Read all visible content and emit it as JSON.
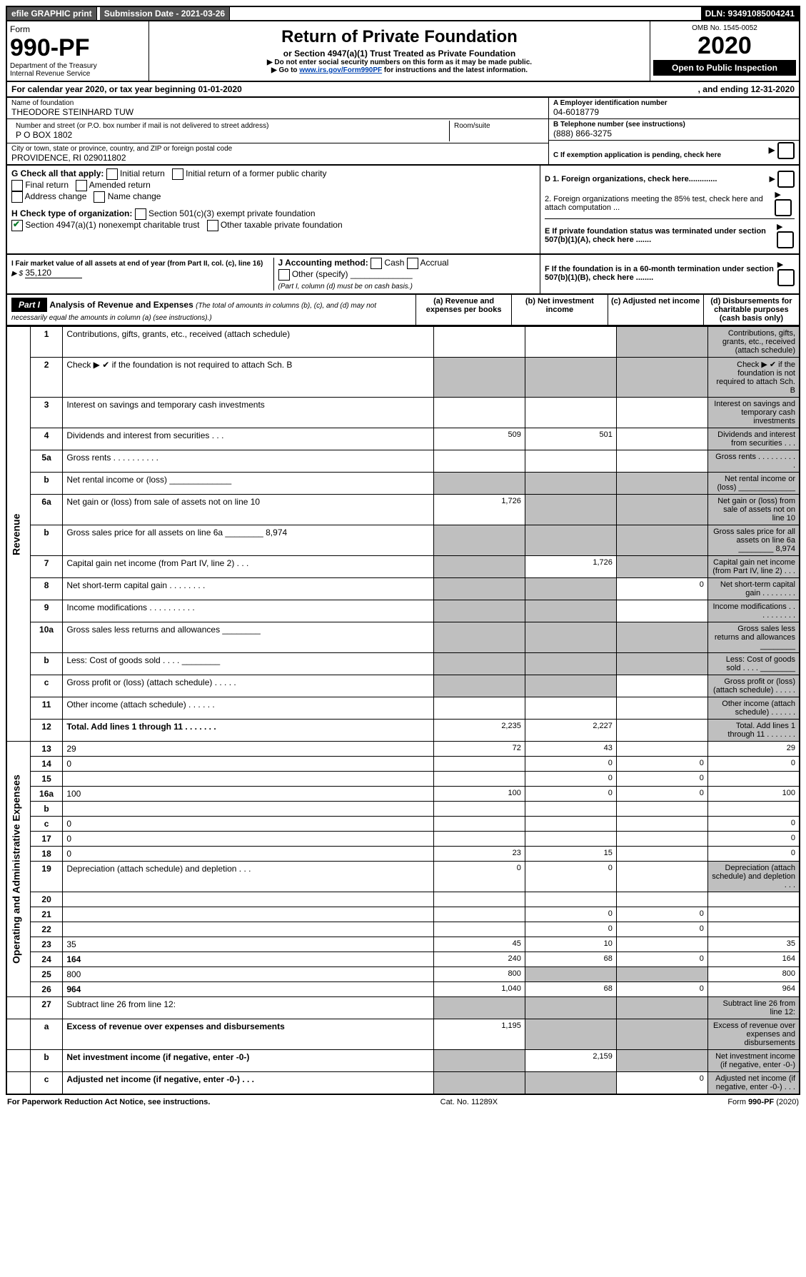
{
  "colors": {
    "link": "#0044b3",
    "shade": "#bfbfbf",
    "check_green": "#0a7a2a"
  },
  "topbar": {
    "efile": "efile GRAPHIC print",
    "submission": "Submission Date - 2021-03-26",
    "dln": "DLN: 93491085004241"
  },
  "header": {
    "form": "Form",
    "form_num": "990-PF",
    "dept1": "Department of the Treasury",
    "dept2": "Internal Revenue Service",
    "title": "Return of Private Foundation",
    "sub": "or Section 4947(a)(1) Trust Treated as Private Foundation",
    "note1": "▶ Do not enter social security numbers on this form as it may be made public.",
    "note2_pre": "▶ Go to ",
    "note2_link": "www.irs.gov/Form990PF",
    "note2_post": " for instructions and the latest information.",
    "omb": "OMB No. 1545-0052",
    "year": "2020",
    "open": "Open to Public Inspection"
  },
  "calendar": {
    "left": "For calendar year 2020, or tax year beginning 01-01-2020",
    "right": ", and ending 12-31-2020"
  },
  "info": {
    "name_lbl": "Name of foundation",
    "name": "THEODORE STEINHARD TUW",
    "addr_lbl": "Number and street (or P.O. box number if mail is not delivered to street address)",
    "addr": "P O BOX 1802",
    "room_lbl": "Room/suite",
    "city_lbl": "City or town, state or province, country, and ZIP or foreign postal code",
    "city": "PROVIDENCE, RI  029011802",
    "ein_lbl": "A Employer identification number",
    "ein": "04-6018779",
    "tel_lbl": "B Telephone number (see instructions)",
    "tel": "(888) 866-3275",
    "c_lbl": "C If exemption application is pending, check here",
    "d1": "D 1. Foreign organizations, check here.............",
    "d2": "2. Foreign organizations meeting the 85% test, check here and attach computation ...",
    "e": "E If private foundation status was terminated under section 507(b)(1)(A), check here .......",
    "f": "F If the foundation is in a 60-month termination under section 507(b)(1)(B), check here ........"
  },
  "g": {
    "label": "G Check all that apply:",
    "opts": [
      "Initial return",
      "Initial return of a former public charity",
      "Final return",
      "Amended return",
      "Address change",
      "Name change"
    ]
  },
  "h": {
    "label": "H Check type of organization:",
    "opt1": "Section 501(c)(3) exempt private foundation",
    "opt2": "Section 4947(a)(1) nonexempt charitable trust",
    "opt3": "Other taxable private foundation"
  },
  "i": {
    "label": "I Fair market value of all assets at end of year (from Part II, col. (c), line 16)",
    "val_pre": "▶ $",
    "val": "35,120"
  },
  "j": {
    "label": "J Accounting method:",
    "cash": "Cash",
    "accrual": "Accrual",
    "other": "Other (specify)",
    "note": "(Part I, column (d) must be on cash basis.)"
  },
  "part1": {
    "label": "Part I",
    "title": "Analysis of Revenue and Expenses",
    "note": "(The total of amounts in columns (b), (c), and (d) may not necessarily equal the amounts in column (a) (see instructions).)",
    "col_a": "(a) Revenue and expenses per books",
    "col_b": "(b) Net investment income",
    "col_c": "(c) Adjusted net income",
    "col_d": "(d) Disbursements for charitable purposes (cash basis only)"
  },
  "sections": {
    "rev": "Revenue",
    "exp": "Operating and Administrative Expenses"
  },
  "rows": [
    {
      "sec": "rev",
      "n": "1",
      "d": "Contributions, gifts, grants, etc., received (attach schedule)",
      "a": "",
      "b": "",
      "cS": true,
      "dS": true
    },
    {
      "sec": "rev",
      "n": "2",
      "d": "Check ▶ ✔ if the foundation is not required to attach Sch. B",
      "aS": true,
      "bS": true,
      "cS": true,
      "dS": true,
      "bold_is": true
    },
    {
      "sec": "rev",
      "n": "3",
      "d": "Interest on savings and temporary cash investments",
      "a": "",
      "b": "",
      "c": "",
      "dS": true
    },
    {
      "sec": "rev",
      "n": "4",
      "d": "Dividends and interest from securities  .  .  .",
      "a": "509",
      "b": "501",
      "c": "",
      "dS": true
    },
    {
      "sec": "rev",
      "n": "5a",
      "d": "Gross rents   .   .   .   .   .   .   .   .   .   .",
      "a": "",
      "b": "",
      "c": "",
      "dS": true
    },
    {
      "sec": "rev",
      "n": "b",
      "d": "Net rental income or (loss)  _____________",
      "aS": true,
      "bS": true,
      "cS": true,
      "dS": true
    },
    {
      "sec": "rev",
      "n": "6a",
      "d": "Net gain or (loss) from sale of assets not on line 10",
      "a": "1,726",
      "bS": true,
      "cS": true,
      "dS": true
    },
    {
      "sec": "rev",
      "n": "b",
      "d": "Gross sales price for all assets on line 6a ________ 8,974",
      "aS": true,
      "bS": true,
      "cS": true,
      "dS": true
    },
    {
      "sec": "rev",
      "n": "7",
      "d": "Capital gain net income (from Part IV, line 2)  .  .  .",
      "aS": true,
      "b": "1,726",
      "cS": true,
      "dS": true
    },
    {
      "sec": "rev",
      "n": "8",
      "d": "Net short-term capital gain  .  .  .  .  .  .  .  .",
      "aS": true,
      "bS": true,
      "c": "0",
      "dS": true
    },
    {
      "sec": "rev",
      "n": "9",
      "d": "Income modifications  .  .  .  .  .  .  .  .  .  .",
      "aS": true,
      "bS": true,
      "c": "",
      "dS": true
    },
    {
      "sec": "rev",
      "n": "10a",
      "d": "Gross sales less returns and allowances  ________",
      "aS": true,
      "bS": true,
      "cS": true,
      "dS": true
    },
    {
      "sec": "rev",
      "n": "b",
      "d": "Less: Cost of goods sold   .   .   .   .  ________",
      "aS": true,
      "bS": true,
      "cS": true,
      "dS": true
    },
    {
      "sec": "rev",
      "n": "c",
      "d": "Gross profit or (loss) (attach schedule)  .  .  .  .  .",
      "aS": true,
      "bS": true,
      "c": "",
      "dS": true
    },
    {
      "sec": "rev",
      "n": "11",
      "d": "Other income (attach schedule)  .  .  .  .  .  .",
      "a": "",
      "b": "",
      "c": "",
      "dS": true
    },
    {
      "sec": "rev",
      "n": "12",
      "d": "Total. Add lines 1 through 11  .  .  .  .  .  .  .",
      "a": "2,235",
      "b": "2,227",
      "c": "",
      "dS": true,
      "bold": true
    },
    {
      "sec": "exp",
      "n": "13",
      "d": "29",
      "a": "72",
      "b": "43",
      "c": ""
    },
    {
      "sec": "exp",
      "n": "14",
      "d": "0",
      "a": "",
      "b": "0",
      "c": "0"
    },
    {
      "sec": "exp",
      "n": "15",
      "d": "",
      "a": "",
      "b": "0",
      "c": "0"
    },
    {
      "sec": "exp",
      "n": "16a",
      "d": "100",
      "a": "100",
      "b": "0",
      "c": "0"
    },
    {
      "sec": "exp",
      "n": "b",
      "d": "",
      "a": "",
      "b": "",
      "c": ""
    },
    {
      "sec": "exp",
      "n": "c",
      "d": "0",
      "a": "",
      "b": "",
      "c": ""
    },
    {
      "sec": "exp",
      "n": "17",
      "d": "0",
      "a": "",
      "b": "",
      "c": ""
    },
    {
      "sec": "exp",
      "n": "18",
      "d": "0",
      "a": "23",
      "b": "15",
      "c": ""
    },
    {
      "sec": "exp",
      "n": "19",
      "d": "Depreciation (attach schedule) and depletion  .  .  .",
      "a": "0",
      "b": "0",
      "c": "",
      "dS": true
    },
    {
      "sec": "exp",
      "n": "20",
      "d": "",
      "a": "",
      "b": "",
      "c": ""
    },
    {
      "sec": "exp",
      "n": "21",
      "d": "",
      "a": "",
      "b": "0",
      "c": "0"
    },
    {
      "sec": "exp",
      "n": "22",
      "d": "",
      "a": "",
      "b": "0",
      "c": "0"
    },
    {
      "sec": "exp",
      "n": "23",
      "d": "35",
      "a": "45",
      "b": "10",
      "c": ""
    },
    {
      "sec": "exp",
      "n": "24",
      "d": "164",
      "a": "240",
      "b": "68",
      "c": "0",
      "bold": true
    },
    {
      "sec": "exp",
      "n": "25",
      "d": "800",
      "a": "800",
      "bS": true,
      "cS": true
    },
    {
      "sec": "exp",
      "n": "26",
      "d": "964",
      "a": "1,040",
      "b": "68",
      "c": "0",
      "bold": true
    },
    {
      "sec": "",
      "n": "27",
      "d": "Subtract line 26 from line 12:",
      "aS": true,
      "bS": true,
      "cS": true,
      "dS": true
    },
    {
      "sec": "",
      "n": "a",
      "d": "Excess of revenue over expenses and disbursements",
      "a": "1,195",
      "bS": true,
      "cS": true,
      "dS": true,
      "bold": true
    },
    {
      "sec": "",
      "n": "b",
      "d": "Net investment income (if negative, enter -0-)",
      "aS": true,
      "b": "2,159",
      "cS": true,
      "dS": true,
      "bold": true
    },
    {
      "sec": "",
      "n": "c",
      "d": "Adjusted net income (if negative, enter -0-)  .  .  .",
      "aS": true,
      "bS": true,
      "c": "0",
      "dS": true,
      "bold": true
    }
  ],
  "footer": {
    "left": "For Paperwork Reduction Act Notice, see instructions.",
    "mid": "Cat. No. 11289X",
    "right": "Form 990-PF (2020)"
  }
}
